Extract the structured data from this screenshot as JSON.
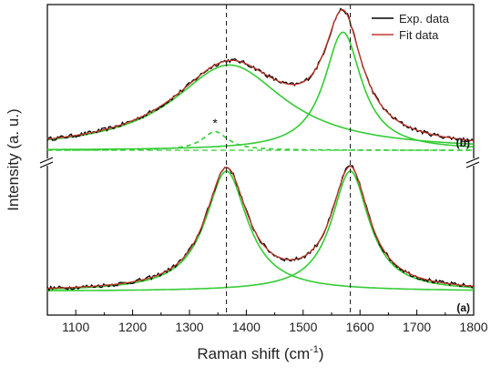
{
  "chart_data": {
    "type": "line",
    "xlabel": "Raman shift (cm",
    "xlabel_sup": "-1",
    "xlabel_close": ")",
    "ylabel": "Intensity (a. u.)",
    "xlim": [
      1050,
      1800
    ],
    "x_ticks": [
      1100,
      1200,
      1300,
      1400,
      1500,
      1600,
      1700,
      1800
    ],
    "y_axis_break": true,
    "grid": false,
    "legend_position": "top-right",
    "legend": [
      {
        "name": "Exp. data",
        "color": "#000000"
      },
      {
        "name": "Fit data",
        "color": "#c0392b"
      }
    ],
    "reference_lines_x": [
      1365,
      1583
    ],
    "annotations": [
      {
        "text": "*",
        "x": 1345
      }
    ],
    "colors": {
      "exp": "#000000",
      "fit": "#c0392b",
      "component": "#33cc33"
    },
    "panels": [
      {
        "label": "(b)",
        "position": "top",
        "baseline": 0.0,
        "exp_noise": 0.018,
        "components": [
          {
            "center": 1370,
            "fwhm": 240,
            "height": 0.78,
            "line_style": "solid"
          },
          {
            "center": 1570,
            "fwhm": 80,
            "height": 1.08,
            "line_style": "solid"
          },
          {
            "center": 1345,
            "fwhm": 55,
            "height": 0.17,
            "line_style": "dashed"
          }
        ]
      },
      {
        "label": "(a)",
        "position": "bottom",
        "baseline": 0.0,
        "exp_noise": 0.018,
        "components": [
          {
            "center": 1365,
            "fwhm": 90,
            "height": 1.1,
            "line_style": "solid"
          },
          {
            "center": 1583,
            "fwhm": 80,
            "height": 1.1,
            "line_style": "solid"
          }
        ]
      }
    ]
  }
}
